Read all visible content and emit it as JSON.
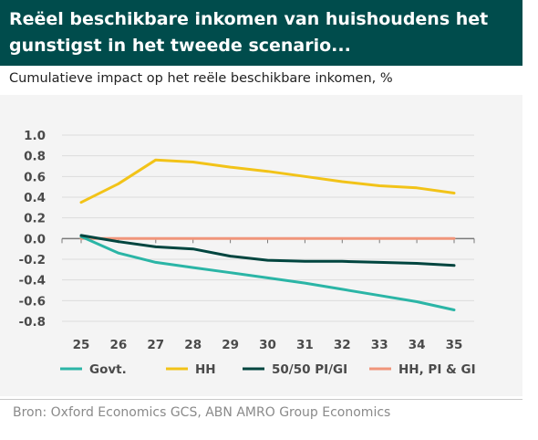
{
  "header": {
    "title_line1": "Reëel beschikbare inkomen van huishoudens het",
    "title_line2": "gunstigst in het tweede scenario..."
  },
  "subtitle": "Cumulatieve impact op het reële beschikbare inkomen, %",
  "source": "Bron: Oxford Economics GCS, ABN AMRO Group Economics",
  "colors": {
    "header_bg": "#004c4c",
    "panel_bg": "#f4f4f4",
    "govt": "#2bb5a6",
    "hh": "#f2c318",
    "pi_gi": "#00453f",
    "hh_pi_gi": "#f0957a",
    "axis_text": "#4a4a4a"
  },
  "chart_data": {
    "type": "line",
    "x": [
      "25",
      "26",
      "27",
      "28",
      "29",
      "30",
      "31",
      "32",
      "33",
      "34",
      "35"
    ],
    "ylim": [
      -0.8,
      1.0
    ],
    "yticks": [
      "1.0",
      "0.8",
      "0.6",
      "0.4",
      "0.2",
      "0.0",
      "-0.2",
      "-0.4",
      "-0.6",
      "-0.8"
    ],
    "grid": true,
    "legend_position": "bottom",
    "series": [
      {
        "name": "Govt.",
        "values": [
          0.02,
          -0.14,
          -0.23,
          -0.28,
          -0.33,
          -0.38,
          -0.43,
          -0.49,
          -0.55,
          -0.61,
          -0.69
        ]
      },
      {
        "name": "HH",
        "values": [
          0.35,
          0.53,
          0.76,
          0.74,
          0.69,
          0.65,
          0.6,
          0.55,
          0.51,
          0.49,
          0.44
        ]
      },
      {
        "name": "50/50 PI/GI",
        "values": [
          0.03,
          -0.03,
          -0.08,
          -0.1,
          -0.17,
          -0.21,
          -0.22,
          -0.22,
          -0.23,
          -0.24,
          -0.26
        ]
      },
      {
        "name": "HH, PI & GI",
        "values": [
          0.0,
          0.0,
          0.0,
          0.0,
          0.0,
          0.0,
          0.0,
          0.0,
          0.0,
          0.0,
          0.0
        ]
      }
    ]
  }
}
